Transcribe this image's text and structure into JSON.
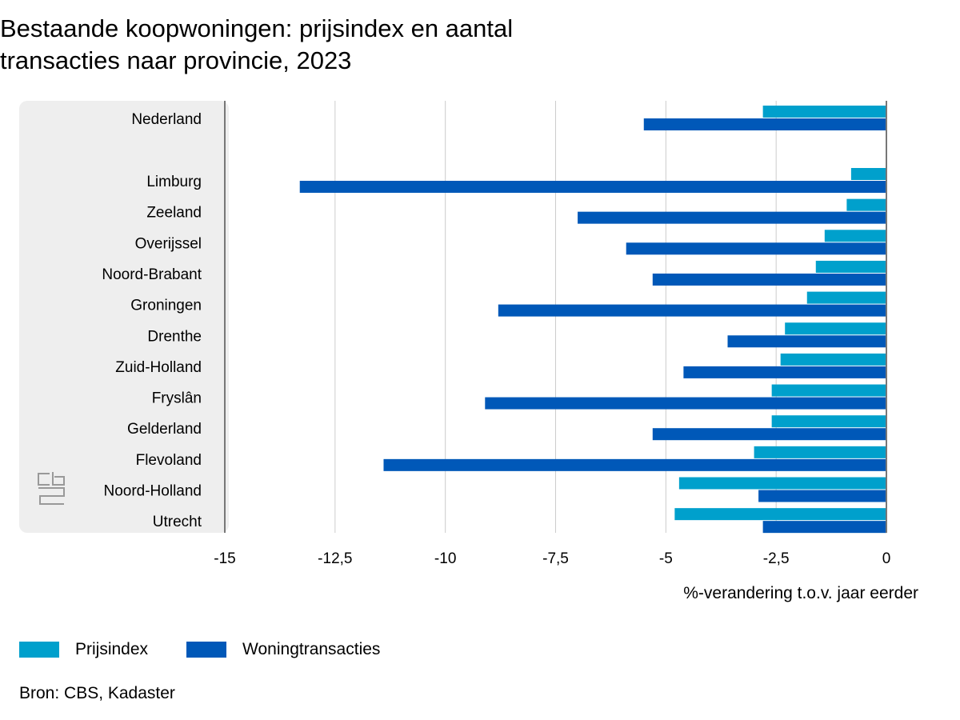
{
  "title_lines": [
    "Bestaande koopwoningen: prijsindex en aantal",
    "transacties naar provincie, 2023"
  ],
  "source": "Bron: CBS, Kadaster",
  "colors": {
    "prijsindex": "#00a0cc",
    "woningtransacties": "#0058b8",
    "panel": "#eeeeee"
  },
  "logo": "CBS",
  "chart_data": {
    "type": "bar",
    "orientation": "horizontal",
    "title": "Bestaande koopwoningen: prijsindex en aantal transacties naar provincie, 2023",
    "xlabel": "%-verandering t.o.v. jaar eerder",
    "ylabel": "",
    "xlim": [
      -15,
      0
    ],
    "xticks": [
      "-15",
      "-12,5",
      "-10",
      "-7,5",
      "-5",
      "-2,5",
      "0"
    ],
    "xtick_values": [
      -15,
      -12.5,
      -10,
      -7.5,
      -5,
      -2.5,
      0
    ],
    "grid": true,
    "legend_position": "bottom-left",
    "categories": [
      "Nederland",
      "Limburg",
      "Zeeland",
      "Overijssel",
      "Noord-Brabant",
      "Groningen",
      "Drenthe",
      "Zuid-Holland",
      "Fryslân",
      "Gelderland",
      "Flevoland",
      "Noord-Holland",
      "Utrecht"
    ],
    "series": [
      {
        "name": "Prijsindex",
        "values": [
          -2.8,
          -0.8,
          -0.9,
          -1.4,
          -1.6,
          -1.8,
          -2.3,
          -2.4,
          -2.6,
          -2.6,
          -3.0,
          -4.7,
          -4.8
        ]
      },
      {
        "name": "Woningtransacties",
        "values": [
          -5.5,
          -13.3,
          -7.0,
          -5.9,
          -5.3,
          -8.8,
          -3.6,
          -4.6,
          -9.1,
          -5.3,
          -11.4,
          -2.9,
          -2.8
        ]
      }
    ]
  }
}
